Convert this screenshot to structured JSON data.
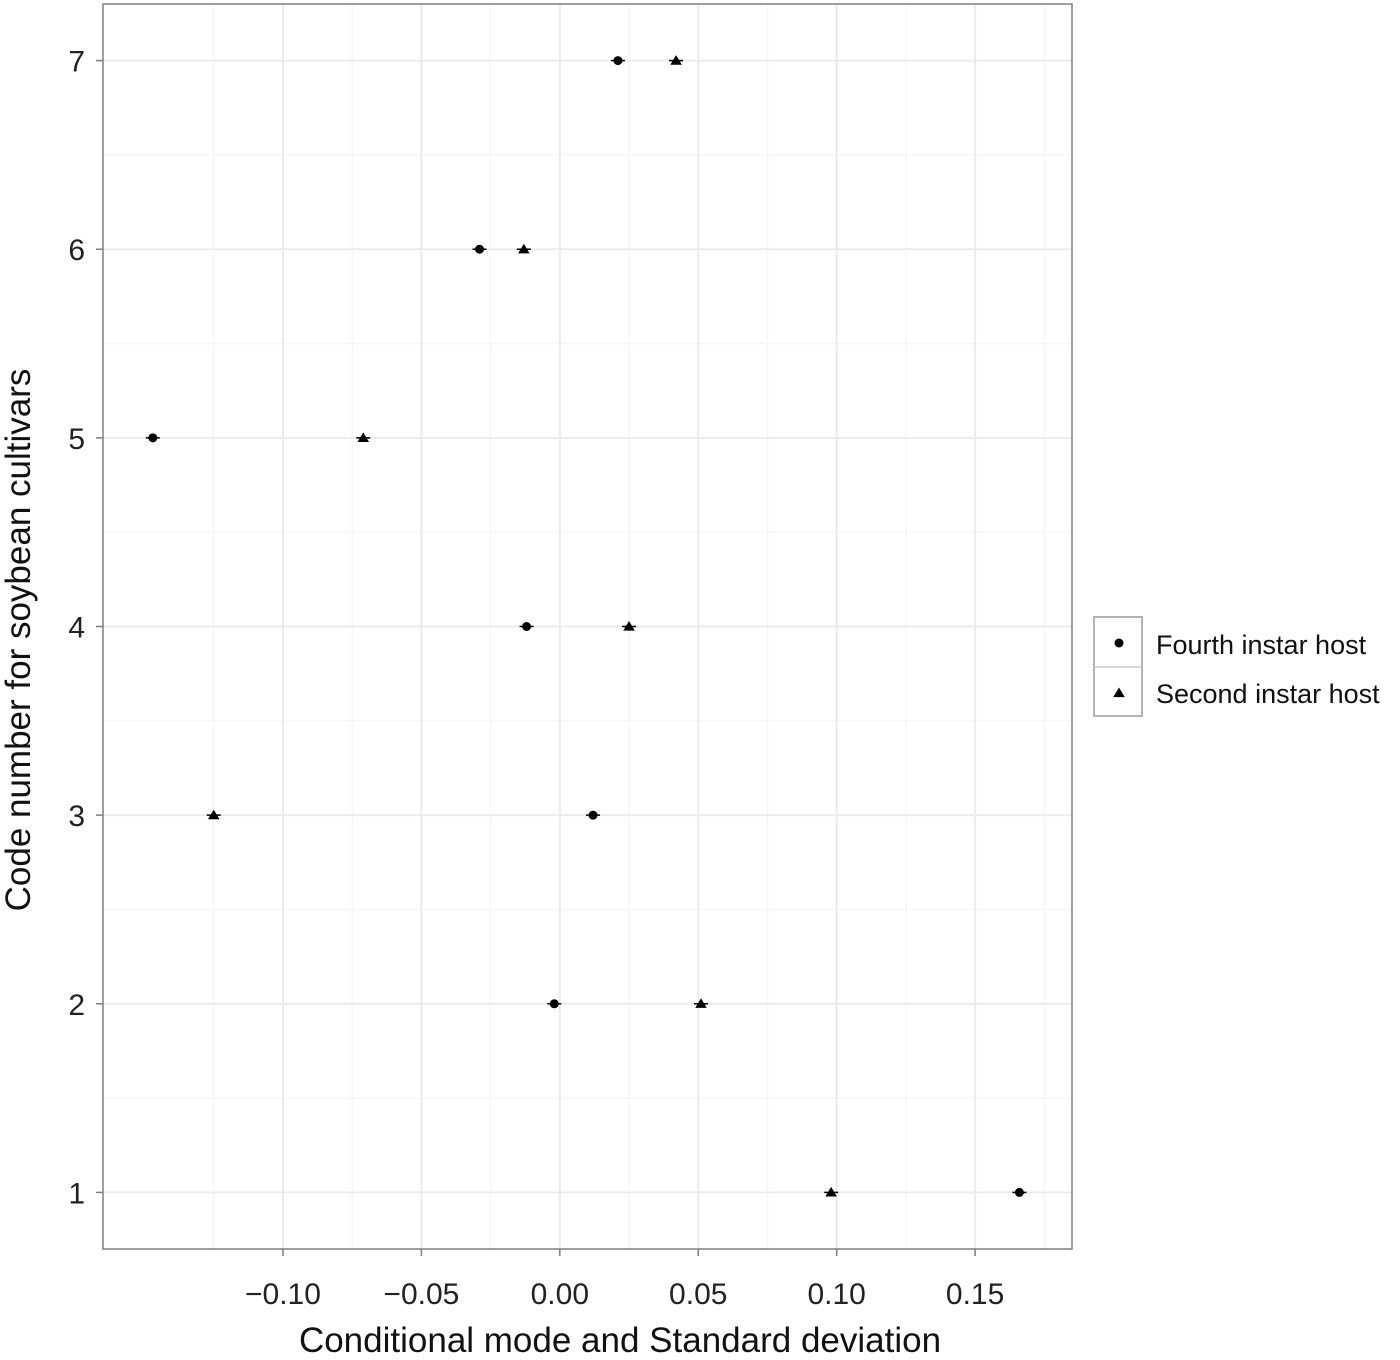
{
  "chart_data": {
    "type": "scatter",
    "title": "",
    "xlabel": "Conditional mode and Standard deviation",
    "ylabel": "Code number for soybean cultivars",
    "xlim": [
      -0.165,
      0.185
    ],
    "ylim": [
      0.7,
      7.3
    ],
    "x_ticks": [
      -0.1,
      -0.05,
      0.0,
      0.05,
      0.1,
      0.15
    ],
    "x_tick_labels": [
      "−0.10",
      "−0.05",
      "0.00",
      "0.05",
      "0.10",
      "0.15"
    ],
    "y_ticks": [
      1,
      2,
      3,
      4,
      5,
      6,
      7
    ],
    "y_tick_labels": [
      "1",
      "2",
      "3",
      "4",
      "5",
      "6",
      "7"
    ],
    "grid": true,
    "legend": "right",
    "series": [
      {
        "name": "Fourth instar host",
        "marker": "circle",
        "color": "#000000",
        "points": [
          {
            "x": 0.166,
            "y": 1
          },
          {
            "x": -0.002,
            "y": 2
          },
          {
            "x": 0.012,
            "y": 3
          },
          {
            "x": -0.012,
            "y": 4
          },
          {
            "x": -0.147,
            "y": 5
          },
          {
            "x": -0.029,
            "y": 6
          },
          {
            "x": 0.021,
            "y": 7
          }
        ]
      },
      {
        "name": "Second instar host",
        "marker": "triangle",
        "color": "#000000",
        "points": [
          {
            "x": 0.098,
            "y": 1
          },
          {
            "x": 0.051,
            "y": 2
          },
          {
            "x": -0.125,
            "y": 3
          },
          {
            "x": 0.025,
            "y": 4
          },
          {
            "x": -0.071,
            "y": 5
          },
          {
            "x": -0.013,
            "y": 6
          },
          {
            "x": 0.042,
            "y": 7
          }
        ]
      }
    ]
  }
}
